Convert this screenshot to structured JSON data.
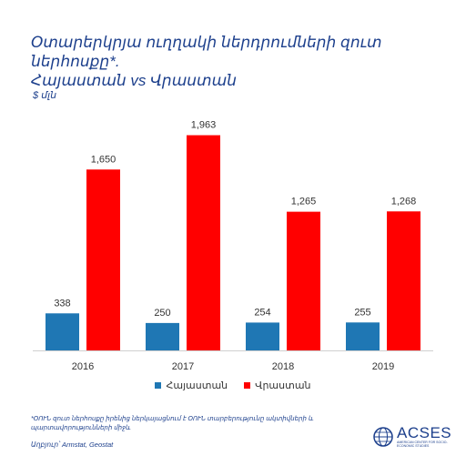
{
  "title_line1": "Օտարերկրյա ուղղակի ներդրումների զուտ ներհոսքը*.",
  "title_line2": "Հայաստան vs Վրաստան",
  "unit": "$ մլն",
  "note_line1": "*ՕՈՒՆ զուտ ներհոսքը իրենից ներկայացնում է ՕՈՒՆ տարբերությունը ակտիվների և",
  "note_line2": "պարտավորությունների միջև",
  "source": "Աղբյուր՝ Armstat, Geostat",
  "logo": {
    "name": "ACSES",
    "subtitle": "AMERICAN CENTER FOR SOCIO-ECONOMIC STUDIES"
  },
  "colors": {
    "armenia": "#1f77b4",
    "georgia": "#ff0000",
    "title": "#1c3f8c"
  },
  "chart_data": {
    "type": "bar",
    "categories": [
      "2016",
      "2017",
      "2018",
      "2019"
    ],
    "series": [
      {
        "name": "Հայաստան",
        "values": [
          338,
          250,
          254,
          255
        ],
        "labels": [
          "338",
          "250",
          "254",
          "255"
        ]
      },
      {
        "name": "Վրաստան",
        "values": [
          1650,
          1963,
          1265,
          1268
        ],
        "labels": [
          "1,650",
          "1,963",
          "1,265",
          "1,268"
        ]
      }
    ],
    "ylim": [
      0,
      2200
    ],
    "grid": false,
    "legend": "bottom"
  }
}
